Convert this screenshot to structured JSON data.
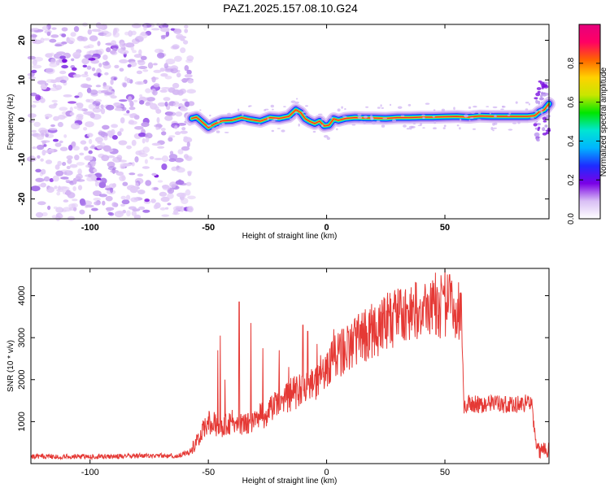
{
  "figure_title": "PAZ1.2025.157.08.10.G24",
  "colors": {
    "snr_line": "#e53935",
    "axis": "#000000"
  },
  "chart_data": [
    {
      "type": "heatmap",
      "xlabel": "Height of straight line (km)",
      "ylabel": "Frequency (Hz)",
      "xlim": [
        -125,
        94
      ],
      "ylim": [
        -25,
        24
      ],
      "x_ticks": [
        -100,
        -50,
        0,
        50
      ],
      "y_ticks": [
        -20,
        -10,
        0,
        10,
        20
      ],
      "colorbar": {
        "label": "Normalized spectral amplitude",
        "range": [
          0,
          1
        ],
        "ticks": [
          0.0,
          0.2,
          0.4,
          0.6,
          0.8
        ],
        "colormap": [
          "#ffffff",
          "#d9bff5",
          "#7a00e6",
          "#1e2cff",
          "#00b4ff",
          "#00e6d2",
          "#00e600",
          "#c8e600",
          "#ffd200",
          "#ff6400",
          "#ff0064",
          "#e6007d"
        ]
      },
      "noise_region_x": [
        -125,
        -57
      ],
      "ridge": {
        "x": [
          -57,
          -55,
          -53,
          -50,
          -47,
          -44,
          -40,
          -36,
          -32,
          -28,
          -24,
          -20,
          -16,
          -13,
          -11,
          -9,
          -7,
          -5,
          -3,
          -1,
          1,
          3,
          5,
          8,
          12,
          16,
          20,
          25,
          30,
          35,
          40,
          45,
          50,
          55,
          60,
          65,
          70,
          75,
          80,
          85,
          88,
          90,
          92,
          94
        ],
        "y": [
          0.3,
          0.6,
          -0.4,
          -2.0,
          -1.0,
          -0.3,
          -0.2,
          0.5,
          0.0,
          -0.4,
          0.5,
          0.3,
          0.8,
          2.5,
          1.8,
          0.2,
          -0.5,
          -1.0,
          -0.4,
          -1.6,
          -1.4,
          0.2,
          -0.2,
          0.3,
          0.5,
          0.4,
          0.4,
          0.3,
          0.5,
          0.5,
          0.6,
          0.6,
          0.7,
          0.8,
          0.6,
          0.9,
          0.8,
          0.8,
          0.8,
          0.8,
          1.0,
          2.0,
          2.5,
          4.0
        ]
      }
    },
    {
      "type": "line",
      "xlabel": "Height of straight line (km)",
      "ylabel": "SNR (10 * v/v)",
      "xlim": [
        -125,
        94
      ],
      "ylim": [
        0,
        4650
      ],
      "x_ticks": [
        -100,
        -50,
        0,
        50
      ],
      "y_ticks": [
        1000,
        2000,
        3000,
        4000
      ],
      "envelope": {
        "x": [
          -125,
          -100,
          -80,
          -62,
          -58,
          -55,
          -50,
          -45,
          -40,
          -35,
          -30,
          -25,
          -20,
          -15,
          -10,
          -5,
          0,
          5,
          10,
          15,
          20,
          25,
          30,
          35,
          40,
          45,
          50,
          55,
          57,
          58,
          60,
          65,
          70,
          75,
          80,
          85,
          87,
          88,
          90,
          94
        ],
        "y": [
          150,
          140,
          160,
          170,
          250,
          500,
          1000,
          900,
          1000,
          900,
          1100,
          1200,
          1500,
          1650,
          1800,
          1950,
          2300,
          2600,
          2800,
          3000,
          3200,
          3350,
          3500,
          3600,
          3700,
          3750,
          3750,
          3700,
          3600,
          1400,
          1450,
          1400,
          1450,
          1400,
          1400,
          1450,
          1400,
          600,
          300,
          350
        ]
      },
      "spikes": [
        {
          "x": -46,
          "y": 2700
        },
        {
          "x": -45,
          "y": 3050
        },
        {
          "x": -43,
          "y": 2000
        },
        {
          "x": -37,
          "y": 3850
        },
        {
          "x": -32,
          "y": 3350
        },
        {
          "x": -27,
          "y": 2750
        },
        {
          "x": -20,
          "y": 2700
        },
        {
          "x": -16,
          "y": 2300
        },
        {
          "x": -10,
          "y": 3300
        },
        {
          "x": -8,
          "y": 3150
        },
        {
          "x": -4,
          "y": 2850
        },
        {
          "x": 3,
          "y": 3200
        },
        {
          "x": 44,
          "y": 4300
        },
        {
          "x": 46,
          "y": 4550
        },
        {
          "x": 50,
          "y": 4650
        },
        {
          "x": 52,
          "y": 4500
        },
        {
          "x": 55,
          "y": 3100
        }
      ]
    }
  ]
}
